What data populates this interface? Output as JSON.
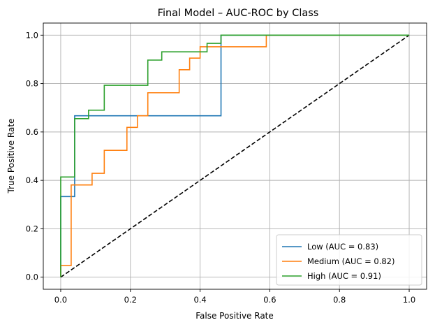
{
  "chart_data": {
    "type": "line",
    "title": "Final Model – AUC-ROC by Class",
    "xlabel": "False Positive Rate",
    "ylabel": "True Positive Rate",
    "xlim": [
      -0.05,
      1.05
    ],
    "ylim": [
      -0.05,
      1.05
    ],
    "x_ticks": [
      "0.0",
      "0.2",
      "0.4",
      "0.6",
      "0.8",
      "1.0"
    ],
    "y_ticks": [
      "0.0",
      "0.2",
      "0.4",
      "0.6",
      "0.8",
      "1.0"
    ],
    "grid": true,
    "legend_position": "lower-right",
    "series": [
      {
        "name": "Low (AUC = 0.83)",
        "color": "#1f77b4",
        "x": [
          0,
          0,
          0.04,
          0.04,
          0.46,
          0.46,
          1.0
        ],
        "y": [
          0,
          0.333,
          0.333,
          0.667,
          0.667,
          1.0,
          1.0
        ]
      },
      {
        "name": "Medium (AUC = 0.82)",
        "color": "#ff7f0e",
        "x": [
          0,
          0,
          0.03,
          0.03,
          0.09,
          0.09,
          0.125,
          0.125,
          0.19,
          0.19,
          0.22,
          0.22,
          0.25,
          0.25,
          0.34,
          0.34,
          0.37,
          0.37,
          0.4,
          0.4,
          0.59,
          0.59,
          1.0
        ],
        "y": [
          0,
          0.048,
          0.048,
          0.381,
          0.381,
          0.429,
          0.429,
          0.524,
          0.524,
          0.619,
          0.619,
          0.667,
          0.667,
          0.762,
          0.762,
          0.857,
          0.857,
          0.905,
          0.905,
          0.952,
          0.952,
          1.0,
          1.0
        ]
      },
      {
        "name": "High (AUC = 0.91)",
        "color": "#2ca02c",
        "x": [
          0,
          0,
          0.04,
          0.04,
          0.08,
          0.08,
          0.125,
          0.125,
          0.25,
          0.25,
          0.29,
          0.29,
          0.42,
          0.42,
          0.46,
          0.46,
          1.0
        ],
        "y": [
          0,
          0.414,
          0.414,
          0.655,
          0.655,
          0.69,
          0.69,
          0.793,
          0.793,
          0.897,
          0.897,
          0.931,
          0.931,
          0.966,
          0.966,
          1.0,
          1.0
        ]
      }
    ],
    "reference_line": {
      "x": [
        0,
        1
      ],
      "y": [
        0,
        1
      ],
      "color": "#000000",
      "style": "dashed"
    }
  }
}
